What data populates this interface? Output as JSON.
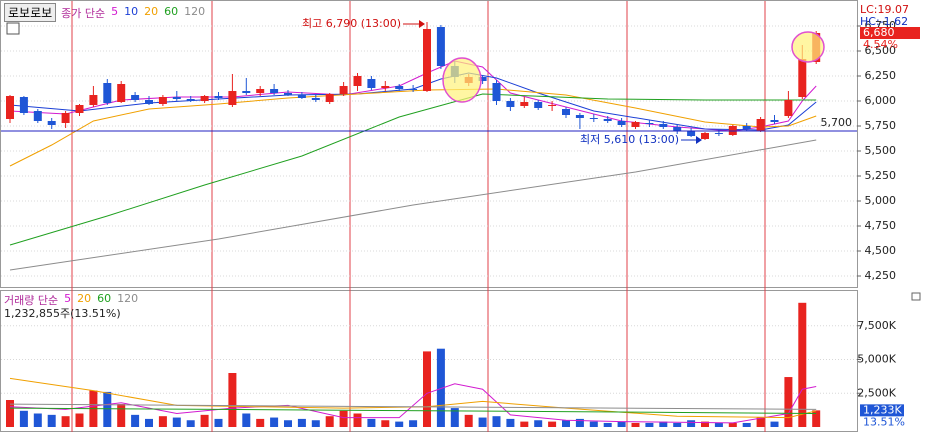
{
  "chart_data": [
    {
      "type": "candlestick",
      "title": "로보로보",
      "legend_title": "종가 단순",
      "up_color": "#e8231f",
      "down_color": "#1f56d6",
      "open": [
        5820,
        6040,
        5900,
        5800,
        5780,
        5880,
        5960,
        6180,
        5990,
        6060,
        6010,
        5970,
        6040,
        6020,
        6000,
        6050,
        5960,
        6100,
        6080,
        6120,
        6080,
        6060,
        6030,
        5990,
        6070,
        6150,
        6220,
        6130,
        6150,
        6120,
        6100,
        6740,
        6350,
        6180,
        6240,
        6180,
        6000,
        5950,
        5990,
        5950,
        5920,
        5860,
        5830,
        5820,
        5800,
        5740,
        5780,
        5770,
        5740,
        5700,
        5620,
        5680,
        5660,
        5750,
        5700,
        5810,
        5850,
        6040,
        6390
      ],
      "high": [
        6060,
        6050,
        5920,
        5830,
        5900,
        5970,
        6150,
        6220,
        6200,
        6090,
        6050,
        6060,
        6100,
        6050,
        6060,
        6090,
        6270,
        6230,
        6150,
        6170,
        6110,
        6090,
        6060,
        6080,
        6190,
        6280,
        6250,
        6200,
        6170,
        6160,
        6790,
        6760,
        6400,
        6270,
        6260,
        6210,
        6030,
        6040,
        6010,
        6000,
        5940,
        5880,
        5870,
        5850,
        5830,
        5800,
        5810,
        5800,
        5770,
        5730,
        5690,
        5720,
        5760,
        5780,
        5840,
        5860,
        6100,
        6560,
        6700
      ],
      "low": [
        5780,
        5860,
        5780,
        5720,
        5730,
        5850,
        5940,
        5960,
        5980,
        5990,
        5960,
        5950,
        6000,
        5990,
        5980,
        6010,
        5940,
        6060,
        6050,
        6060,
        6050,
        6020,
        5990,
        5970,
        6050,
        6100,
        6110,
        6100,
        6100,
        6090,
        6090,
        6320,
        6180,
        6150,
        6170,
        5960,
        5900,
        5930,
        5910,
        5900,
        5830,
        5720,
        5790,
        5780,
        5740,
        5720,
        5740,
        5720,
        5670,
        5640,
        5610,
        5650,
        5650,
        5700,
        5690,
        5770,
        5830,
        6020,
        6370
      ],
      "close": [
        6050,
        5880,
        5800,
        5760,
        5880,
        5960,
        6060,
        5980,
        6170,
        6010,
        5970,
        6040,
        6020,
        6000,
        6050,
        6030,
        6100,
        6080,
        6120,
        6080,
        6060,
        6030,
        6010,
        6070,
        6150,
        6250,
        6130,
        6150,
        6120,
        6110,
        6720,
        6350,
        6240,
        6240,
        6200,
        6000,
        5940,
        5990,
        5930,
        5960,
        5860,
        5830,
        5820,
        5800,
        5760,
        5790,
        5770,
        5740,
        5700,
        5650,
        5680,
        5670,
        5750,
        5720,
        5820,
        5790,
        6010,
        6420,
        6680
      ],
      "series": [
        {
          "name": "5",
          "color": "#d21bd0",
          "x": [
            0,
            4,
            8,
            12,
            16,
            20,
            24,
            28,
            30,
            32,
            34,
            36,
            40,
            44,
            48,
            52,
            54,
            56,
            57,
            58
          ],
          "values": [
            5900,
            5870,
            6010,
            6040,
            6040,
            6090,
            6060,
            6150,
            6280,
            6400,
            6340,
            6080,
            5940,
            5800,
            5740,
            5700,
            5740,
            5800,
            6000,
            6150
          ]
        },
        {
          "name": "10",
          "color": "#1b3fd6",
          "x": [
            0,
            5,
            10,
            15,
            20,
            25,
            29,
            31,
            33,
            35,
            38,
            42,
            46,
            50,
            54,
            56,
            58
          ],
          "values": [
            5960,
            5900,
            5980,
            6020,
            6060,
            6070,
            6120,
            6220,
            6280,
            6230,
            6080,
            5900,
            5810,
            5720,
            5710,
            5760,
            5990
          ]
        },
        {
          "name": "20",
          "color": "#f0a000",
          "x": [
            0,
            3,
            6,
            10,
            15,
            20,
            25,
            30,
            35,
            40,
            45,
            50,
            54,
            56,
            58
          ],
          "values": [
            5350,
            5560,
            5800,
            5920,
            5970,
            6030,
            6070,
            6110,
            6120,
            6060,
            5930,
            5790,
            5740,
            5750,
            5850
          ]
        },
        {
          "name": "60",
          "color": "#20a020",
          "x": [
            0,
            7,
            14,
            21,
            28,
            34,
            43,
            50,
            58
          ],
          "values": [
            4560,
            4850,
            5160,
            5450,
            5840,
            6070,
            6020,
            6010,
            6010
          ]
        },
        {
          "name": "120",
          "color": "#8c8c8c",
          "x": [
            0,
            15,
            29,
            45,
            58
          ],
          "values": [
            4310,
            4620,
            4960,
            5290,
            5610
          ]
        }
      ],
      "ylim": [
        4140,
        6990
      ],
      "yticks": [
        {
          "value": 4250,
          "label": "4,250"
        },
        {
          "value": 4500,
          "label": "4,500"
        },
        {
          "value": 4750,
          "label": "4,750"
        },
        {
          "value": 5000,
          "label": "5,000"
        },
        {
          "value": 5250,
          "label": "5,250"
        },
        {
          "value": 5500,
          "label": "5,500"
        },
        {
          "value": 5750,
          "label": "5,750"
        },
        {
          "value": 6000,
          "label": "6,000"
        },
        {
          "value": 6250,
          "label": "6,250"
        },
        {
          "value": 6500,
          "label": "6,500"
        },
        {
          "value": 6750,
          "label": "6,750"
        }
      ],
      "grid": true,
      "hline": {
        "value": 5700,
        "label": "5,700",
        "color": "#2020c0"
      },
      "high_note": {
        "text": "최고 6,790 (13:00)",
        "value": 6790,
        "index": 30
      },
      "low_note": {
        "text": "최저 5,610 (13:00)",
        "value": 5610,
        "index": 50
      },
      "lc": "LC:19.07",
      "hc": "HC:-1.62",
      "current": {
        "value": 6680,
        "label": "6,680",
        "change": {
          "value": 4.54,
          "label": "4.54%"
        }
      }
    },
    {
      "type": "bar",
      "legend_title": "거래량 단순",
      "info": "1,232,855주(13.51%)",
      "values": [
        2000,
        1200,
        1000,
        900,
        800,
        1000,
        2700,
        2600,
        1700,
        900,
        600,
        800,
        700,
        500,
        900,
        600,
        4000,
        1000,
        600,
        700,
        500,
        600,
        500,
        800,
        1200,
        1000,
        600,
        500,
        400,
        500,
        5600,
        5800,
        1400,
        900,
        700,
        800,
        600,
        400,
        500,
        400,
        500,
        600,
        400,
        300,
        400,
        300,
        300,
        400,
        300,
        500,
        400,
        300,
        300,
        300,
        700,
        400,
        3700,
        9200,
        1232.855
      ],
      "series": [
        {
          "name": "5",
          "color": "#d21bd0",
          "x": [
            0,
            4,
            8,
            12,
            16,
            20,
            24,
            28,
            30,
            32,
            34,
            36,
            40,
            44,
            48,
            52,
            56,
            57,
            58
          ],
          "values": [
            1500,
            1300,
            1800,
            1000,
            1400,
            1600,
            700,
            700,
            2500,
            3200,
            2800,
            900,
            500,
            400,
            350,
            300,
            1000,
            2800,
            3000
          ]
        },
        {
          "name": "20",
          "color": "#f0a000",
          "x": [
            0,
            6,
            12,
            18,
            24,
            30,
            34,
            40,
            48,
            56,
            58
          ],
          "values": [
            3600,
            2700,
            1600,
            1500,
            1400,
            1500,
            1900,
            1400,
            800,
            700,
            1200
          ]
        },
        {
          "name": "60",
          "color": "#20a020",
          "x": [
            0,
            15,
            30,
            45,
            58
          ],
          "values": [
            1400,
            1300,
            1200,
            1100,
            1000
          ]
        },
        {
          "name": "120",
          "color": "#8c8c8c",
          "x": [
            0,
            29,
            58
          ],
          "values": [
            1700,
            1500,
            1300
          ]
        }
      ],
      "ylim": [
        0,
        10000
      ],
      "yticks": [
        {
          "value": 2500,
          "label": "2,500K"
        },
        {
          "value": 5000,
          "label": "5,000K"
        },
        {
          "value": 7500,
          "label": "7,500K"
        }
      ],
      "grid": true,
      "current": {
        "value": 1232.855,
        "label": "1,233K",
        "ratio": {
          "value": 13.51,
          "label": "13.51%"
        }
      }
    }
  ]
}
